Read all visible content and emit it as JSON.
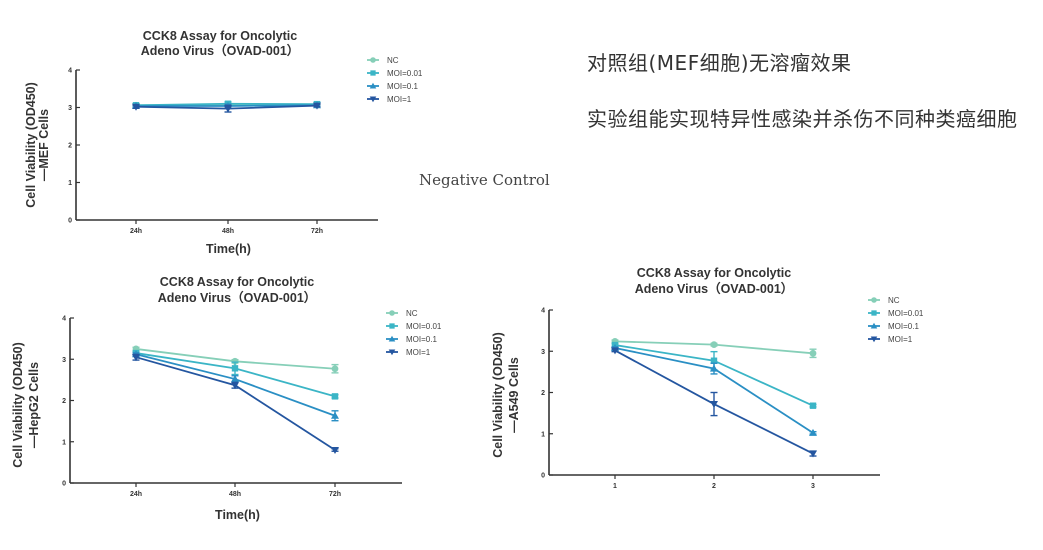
{
  "notes": {
    "line1": "对照组(MEF细胞)无溶瘤效果",
    "line2": "实验组能实现特异性感染并杀伤不同种类癌细胞",
    "negative_control": "Negative Control"
  },
  "colors": {
    "NC": "#86cfb8",
    "MOI=0.01": "#3bb5c6",
    "MOI=0.1": "#2a8fc4",
    "MOI=1": "#2456a0",
    "axis": "#333333"
  },
  "chart_data": [
    {
      "id": "mef",
      "type": "line",
      "title": [
        "CCK8 Assay for Oncolytic",
        "Adeno Virus（OVAD-001）"
      ],
      "xlabel": "Time(h)",
      "ylabel": [
        "Cell Viability (OD450)",
        "—MEF Cells"
      ],
      "categories": [
        "24h",
        "48h",
        "72h"
      ],
      "ylim": [
        0,
        4
      ],
      "yticks": [
        "0",
        "1",
        "2",
        "3",
        "4"
      ],
      "legend_position": "right",
      "grid": false,
      "series": [
        {
          "name": "NC",
          "marker": "circle",
          "values": [
            3.06,
            3.07,
            3.06
          ],
          "errors": [
            0.03,
            0.04,
            0.04
          ]
        },
        {
          "name": "MOI=0.01",
          "marker": "square",
          "values": [
            3.06,
            3.1,
            3.09
          ],
          "errors": [
            0.04,
            0.05,
            0.05
          ]
        },
        {
          "name": "MOI=0.1",
          "marker": "triangle-up",
          "values": [
            3.04,
            3.04,
            3.06
          ],
          "errors": [
            0.03,
            0.05,
            0.04
          ]
        },
        {
          "name": "MOI=1",
          "marker": "triangle-down",
          "values": [
            3.02,
            2.97,
            3.05
          ],
          "errors": [
            0.04,
            0.09,
            0.03
          ]
        }
      ]
    },
    {
      "id": "hepg2",
      "type": "line",
      "title": [
        "CCK8 Assay for Oncolytic",
        "Adeno Virus（OVAD-001）"
      ],
      "xlabel": "Time(h)",
      "ylabel": [
        "Cell Viability (OD450)",
        "—HepG2 Cells"
      ],
      "categories": [
        "24h",
        "48h",
        "72h"
      ],
      "ylim": [
        0,
        4
      ],
      "yticks": [
        "0",
        "1",
        "2",
        "3",
        "4"
      ],
      "legend_position": "right",
      "grid": false,
      "series": [
        {
          "name": "NC",
          "marker": "circle",
          "values": [
            3.25,
            2.95,
            2.77
          ],
          "errors": [
            0.04,
            0.04,
            0.1
          ]
        },
        {
          "name": "MOI=0.01",
          "marker": "square",
          "values": [
            3.15,
            2.78,
            2.1
          ],
          "errors": [
            0.04,
            0.15,
            0.04
          ]
        },
        {
          "name": "MOI=0.1",
          "marker": "triangle-up",
          "values": [
            3.12,
            2.52,
            1.63
          ],
          "errors": [
            0.04,
            0.08,
            0.12
          ]
        },
        {
          "name": "MOI=1",
          "marker": "triangle-down",
          "values": [
            3.05,
            2.37,
            0.8
          ],
          "errors": [
            0.07,
            0.07,
            0.03
          ]
        }
      ]
    },
    {
      "id": "a549",
      "type": "line",
      "title": [
        "CCK8 Assay for Oncolytic",
        "Adeno Virus（OVAD-001）"
      ],
      "xlabel": "",
      "ylabel": [
        "Cell Viability (OD450)",
        "—A549 Cells"
      ],
      "categories": [
        "1",
        "2",
        "3"
      ],
      "ylim": [
        0,
        4
      ],
      "yticks": [
        "0",
        "1",
        "2",
        "3",
        "4"
      ],
      "legend_position": "right",
      "grid": false,
      "series": [
        {
          "name": "NC",
          "marker": "circle",
          "values": [
            3.24,
            3.16,
            2.95
          ],
          "errors": [
            0.03,
            0.03,
            0.1
          ]
        },
        {
          "name": "MOI=0.01",
          "marker": "square",
          "values": [
            3.15,
            2.77,
            1.68
          ],
          "errors": [
            0.03,
            0.22,
            0.03
          ]
        },
        {
          "name": "MOI=0.1",
          "marker": "triangle-up",
          "values": [
            3.08,
            2.58,
            1.02
          ],
          "errors": [
            0.03,
            0.13,
            0.03
          ]
        },
        {
          "name": "MOI=1",
          "marker": "triangle-down",
          "values": [
            3.02,
            1.72,
            0.52
          ],
          "errors": [
            0.03,
            0.28,
            0.06
          ]
        }
      ]
    }
  ]
}
